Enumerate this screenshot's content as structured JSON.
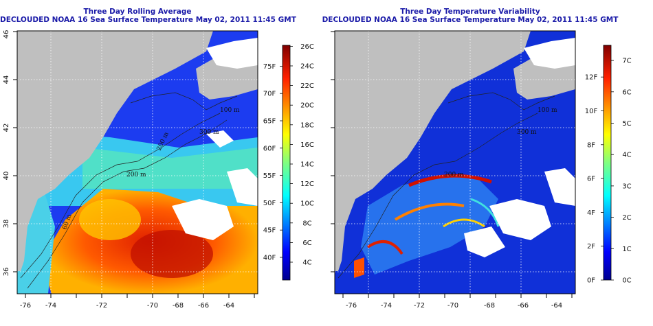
{
  "left_panel": {
    "title_line1": "Three Day Rolling Average",
    "title_line2": "DECLOUDED NOAA 16 Sea Surface Temperature May 02, 2011 11:45 GMT",
    "colorbar_left_labels": [
      "4C",
      "6C",
      "8C",
      "10C",
      "12C",
      "14C",
      "16C",
      "18C",
      "20C",
      "22C",
      "24C",
      "26C"
    ],
    "colorbar_right_labels": [
      "40F",
      "45F",
      "50F",
      "55F",
      "60F",
      "65F",
      "70F",
      "75F"
    ],
    "contour_labels": [
      "100 m",
      "200 m",
      "200 m",
      "60 m",
      "300 m"
    ]
  },
  "right_panel": {
    "title_line1": "Three Day Temperature Variability",
    "title_line2": "DECLOUDED NOAA 16 Sea Surface Temperature May 02, 2011 11:45 GMT",
    "colorbar_left_labels": [
      "0F",
      "2F",
      "4F",
      "6F",
      "8F",
      "10F",
      "12F"
    ],
    "colorbar_right_labels": [
      "0C",
      "1C",
      "2C",
      "3C",
      "4C",
      "5C",
      "6C",
      "7C"
    ],
    "contour_labels": [
      "100 m",
      "200 m",
      "300 m"
    ]
  },
  "axes": {
    "lon_ticks": [
      "-76",
      "-74",
      "-72",
      "-70",
      "-68",
      "-66",
      "-64"
    ],
    "lat_ticks": [
      "36",
      "38",
      "40",
      "42",
      "44",
      "46"
    ]
  },
  "colors": {
    "land": "#bfbfbf",
    "clouds": "#ffffff",
    "title": "#1a1aa8",
    "grid": "#ffffff"
  }
}
